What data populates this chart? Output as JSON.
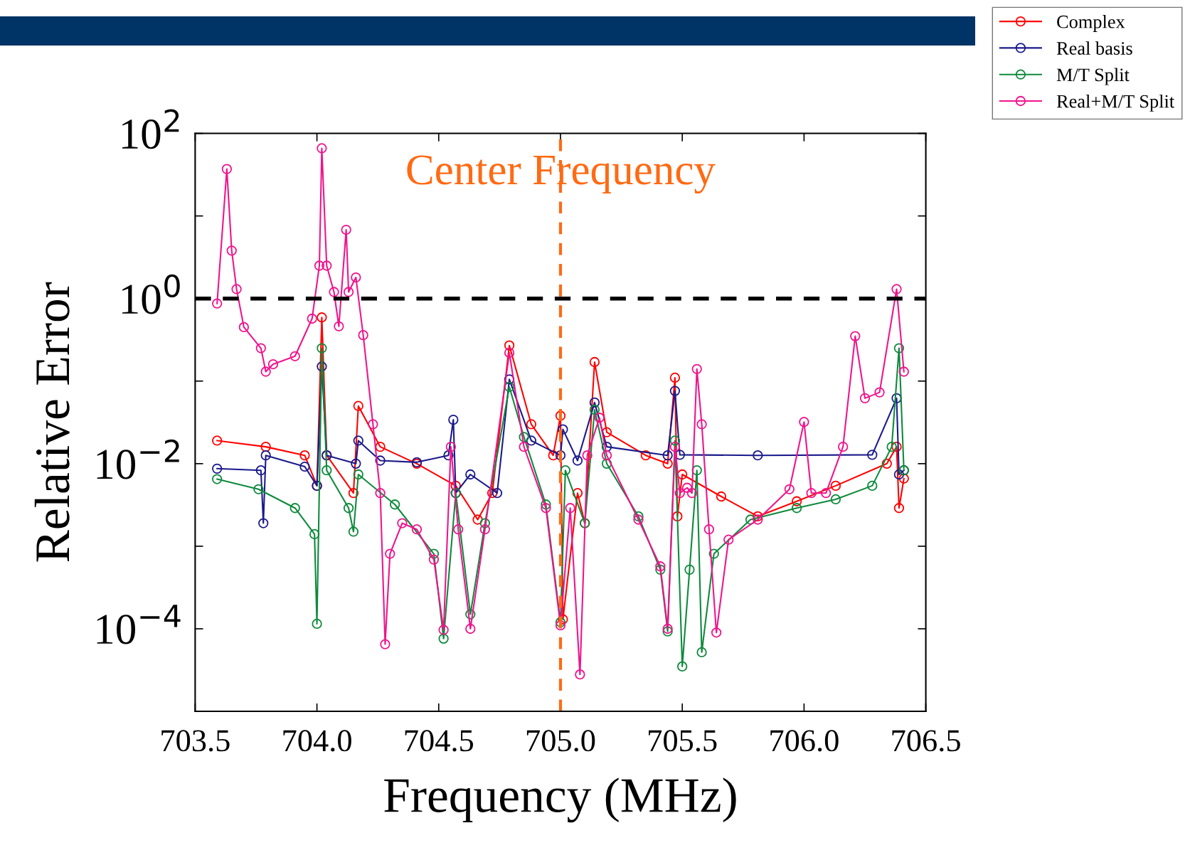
{
  "chart_data": {
    "type": "line",
    "xlabel": "Frequency (MHz)",
    "ylabel": "Relative Error",
    "log": "y",
    "xlim": [
      703.5,
      706.5
    ],
    "ylim": [
      1e-05,
      100
    ],
    "xticks": [
      703.5,
      {
        "value": 704.0,
        "label": "704.0"
      },
      704.5,
      {
        "value": 705.0,
        "label": "705.0"
      },
      705.5,
      {
        "value": 706.0,
        "label": "706.0"
      },
      706.5
    ],
    "yticks": [
      {
        "value": 100,
        "label": "10$^{2}$"
      },
      {
        "value": 10,
        "label": null
      },
      {
        "value": 1,
        "label": "10$^{0}$"
      },
      {
        "value": 0.1,
        "label": null
      },
      {
        "value": 0.01,
        "label": "10$^{−2}$"
      },
      {
        "value": 0.001,
        "label": null
      },
      {
        "value": 0.0001,
        "label": "10$^{−4}$"
      },
      {
        "value": 1e-05,
        "label": null
      }
    ],
    "marker": "circle",
    "line_style": "solid",
    "grid": false,
    "legend": "top right",
    "ref_lines": [
      {
        "axis": "y",
        "value": 1,
        "color": "#000000",
        "line_style": "dashed"
      },
      {
        "axis": "x",
        "value": 705.0,
        "label": "Center Frequency",
        "color": "#ff6a13",
        "line_style": "dashed"
      }
    ],
    "series": [
      {
        "name": "Complex",
        "color": "#ff0000",
        "x": [
          703.59,
          703.79,
          703.95,
          704.0,
          704.02,
          704.04,
          704.15,
          704.17,
          704.26,
          704.41,
          704.57,
          704.66,
          704.72,
          704.79,
          704.88,
          704.97,
          705.0,
          705.01,
          705.07,
          705.1,
          705.14,
          705.19,
          705.35,
          705.44,
          705.47,
          705.48,
          705.5,
          705.66,
          705.81,
          705.97,
          706.13,
          706.34,
          706.38,
          706.39,
          706.41
        ],
        "values": [
          0.019,
          0.016,
          0.0126,
          0.0054,
          0.59,
          0.0126,
          0.0044,
          0.05,
          0.016,
          0.01,
          0.0054,
          0.0021,
          0.0044,
          0.27,
          0.03,
          0.0126,
          0.038,
          0.00013,
          0.0044,
          0.0019,
          0.17,
          0.024,
          0.0126,
          0.01,
          0.11,
          0.0023,
          0.0074,
          0.004,
          0.0023,
          0.0035,
          0.0054,
          0.01,
          0.016,
          0.0029,
          0.0066
        ]
      },
      {
        "name": "Real basis",
        "color": "#1a1a8c",
        "x": [
          703.59,
          703.77,
          703.78,
          703.79,
          703.95,
          704.0,
          704.02,
          704.04,
          704.16,
          704.17,
          704.26,
          704.41,
          704.54,
          704.56,
          704.57,
          704.63,
          704.74,
          704.79,
          704.88,
          705.0,
          705.01,
          705.07,
          705.14,
          705.19,
          705.44,
          705.47,
          705.49,
          705.81,
          706.28,
          706.38,
          706.39,
          706.41
        ],
        "values": [
          0.0087,
          0.0083,
          0.0019,
          0.0126,
          0.0092,
          0.0054,
          0.15,
          0.0126,
          0.01,
          0.019,
          0.0109,
          0.0104,
          0.0126,
          0.034,
          0.0044,
          0.0074,
          0.0044,
          0.105,
          0.019,
          0.0126,
          0.026,
          0.0109,
          0.055,
          0.016,
          0.0126,
          0.076,
          0.0128,
          0.0126,
          0.0128,
          0.062,
          0.0074,
          0.0083
        ]
      },
      {
        "name": "M/T Split",
        "color": "#0e8a3c",
        "x": [
          703.59,
          703.76,
          703.91,
          703.99,
          704.0,
          704.02,
          704.04,
          704.13,
          704.15,
          704.17,
          704.32,
          704.48,
          704.52,
          704.57,
          704.63,
          704.69,
          704.79,
          704.85,
          704.94,
          705.0,
          705.02,
          705.1,
          705.14,
          705.19,
          705.32,
          705.41,
          705.44,
          705.47,
          705.5,
          705.53,
          705.56,
          705.58,
          705.63,
          705.78,
          705.97,
          706.13,
          706.28,
          706.36,
          706.39,
          706.41
        ],
        "values": [
          0.0065,
          0.0049,
          0.0029,
          0.0014,
          0.000115,
          0.25,
          0.0083,
          0.0029,
          0.0015,
          0.0074,
          0.0032,
          0.00081,
          7.6e-05,
          0.0044,
          0.00015,
          0.0019,
          0.085,
          0.021,
          0.0032,
          0.00012,
          0.0083,
          0.0019,
          0.045,
          0.01,
          0.0023,
          0.00052,
          9.3e-05,
          0.019,
          3.5e-05,
          0.00052,
          0.0083,
          5.2e-05,
          0.00081,
          0.0021,
          0.0029,
          0.0037,
          0.0054,
          0.016,
          0.25,
          0.0083
        ]
      },
      {
        "name": "Real+M/T Split",
        "color": "#f0148c",
        "x": [
          703.59,
          703.63,
          703.65,
          703.67,
          703.7,
          703.77,
          703.79,
          703.82,
          703.91,
          703.98,
          704.01,
          704.02,
          704.04,
          704.07,
          704.09,
          704.12,
          704.13,
          704.16,
          704.19,
          704.23,
          704.26,
          704.28,
          704.3,
          704.35,
          704.41,
          704.48,
          704.52,
          704.55,
          704.58,
          704.63,
          704.69,
          704.79,
          704.85,
          704.94,
          705.0,
          705.04,
          705.08,
          705.11,
          705.16,
          705.19,
          705.32,
          705.41,
          705.44,
          705.47,
          705.49,
          705.52,
          705.54,
          705.56,
          705.58,
          705.61,
          705.64,
          705.69,
          705.81,
          705.94,
          706.0,
          706.03,
          706.09,
          706.16,
          706.21,
          706.25,
          706.31,
          706.38,
          706.41
        ],
        "values": [
          0.87,
          37,
          3.8,
          1.3,
          0.45,
          0.25,
          0.13,
          0.16,
          0.2,
          0.57,
          2.5,
          66,
          2.5,
          1.2,
          0.46,
          6.8,
          1.2,
          1.8,
          0.36,
          0.03,
          0.0044,
          6.5e-05,
          0.00081,
          0.0019,
          0.0016,
          0.00069,
          9.7e-05,
          0.016,
          0.0016,
          0.0001,
          0.0016,
          0.22,
          0.016,
          0.0029,
          0.00011,
          0.0029,
          2.8e-05,
          0.0126,
          0.036,
          0.0126,
          0.0021,
          0.00057,
          0.0001,
          0.016,
          0.0044,
          0.0051,
          0.0044,
          0.14,
          0.03,
          0.0016,
          9e-05,
          0.0012,
          0.0021,
          0.0049,
          0.032,
          0.0044,
          0.0044,
          0.016,
          0.35,
          0.062,
          0.073,
          1.3,
          0.13
        ]
      }
    ]
  }
}
